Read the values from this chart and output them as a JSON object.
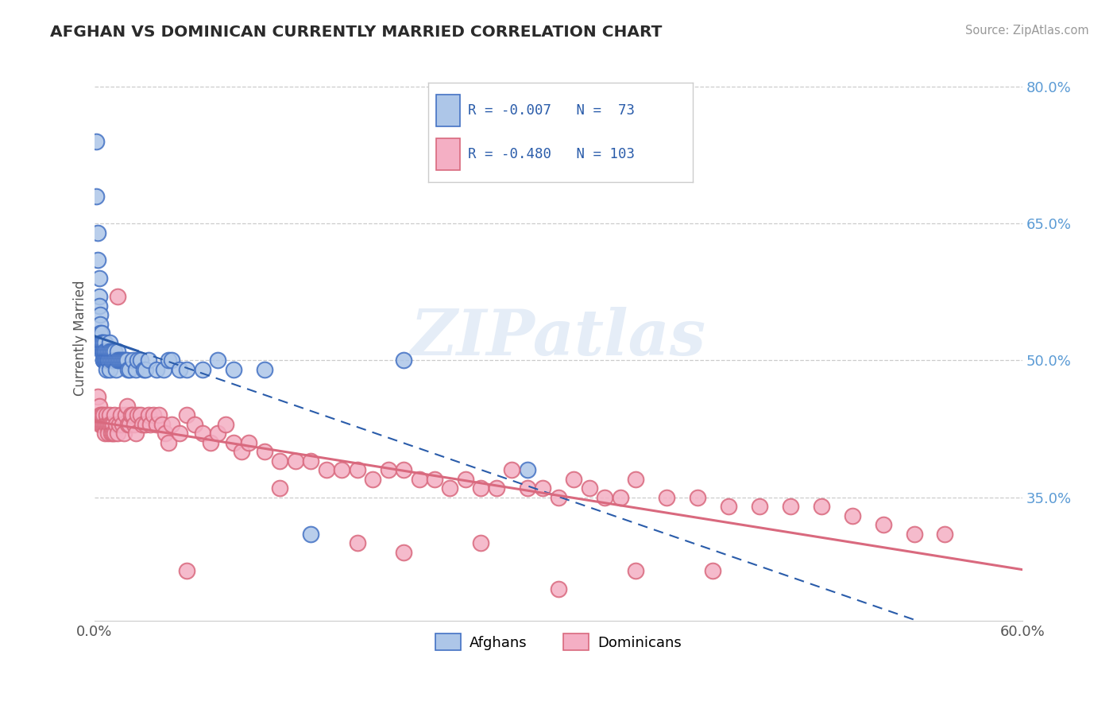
{
  "title": "AFGHAN VS DOMINICAN CURRENTLY MARRIED CORRELATION CHART",
  "source_text": "Source: ZipAtlas.com",
  "ylabel": "Currently Married",
  "x_min": 0.0,
  "x_max": 0.6,
  "y_min": 0.215,
  "y_max": 0.835,
  "y_ticks": [
    0.35,
    0.5,
    0.65,
    0.8
  ],
  "y_tick_labels": [
    "35.0%",
    "50.0%",
    "65.0%",
    "80.0%"
  ],
  "x_ticks": [
    0.0,
    0.6
  ],
  "x_tick_labels": [
    "0.0%",
    "60.0%"
  ],
  "afghan_color": "#adc6e8",
  "dominican_color": "#f4afc4",
  "afghan_edge_color": "#4472c4",
  "dominican_edge_color": "#d9697e",
  "afghan_line_color": "#2a5caa",
  "dominican_line_color": "#d9697e",
  "legend_label_1": "Afghans",
  "legend_label_2": "Dominicans",
  "R1": -0.007,
  "N1": 73,
  "R2": -0.48,
  "N2": 103,
  "watermark": "ZIPatlas",
  "afghan_x": [
    0.001,
    0.001,
    0.002,
    0.002,
    0.003,
    0.003,
    0.003,
    0.004,
    0.004,
    0.004,
    0.005,
    0.005,
    0.005,
    0.005,
    0.006,
    0.006,
    0.006,
    0.006,
    0.006,
    0.007,
    0.007,
    0.007,
    0.007,
    0.007,
    0.008,
    0.008,
    0.008,
    0.008,
    0.009,
    0.009,
    0.009,
    0.01,
    0.01,
    0.01,
    0.01,
    0.011,
    0.011,
    0.012,
    0.012,
    0.013,
    0.013,
    0.014,
    0.014,
    0.015,
    0.015,
    0.016,
    0.017,
    0.018,
    0.019,
    0.02,
    0.021,
    0.022,
    0.023,
    0.025,
    0.027,
    0.028,
    0.03,
    0.032,
    0.033,
    0.035,
    0.04,
    0.045,
    0.048,
    0.05,
    0.055,
    0.06,
    0.07,
    0.08,
    0.09,
    0.11,
    0.14,
    0.2,
    0.28
  ],
  "afghan_y": [
    0.74,
    0.68,
    0.64,
    0.61,
    0.59,
    0.57,
    0.56,
    0.55,
    0.54,
    0.53,
    0.53,
    0.52,
    0.52,
    0.51,
    0.52,
    0.51,
    0.51,
    0.5,
    0.5,
    0.52,
    0.51,
    0.51,
    0.5,
    0.5,
    0.51,
    0.5,
    0.5,
    0.49,
    0.51,
    0.5,
    0.5,
    0.52,
    0.51,
    0.5,
    0.49,
    0.51,
    0.5,
    0.51,
    0.5,
    0.51,
    0.5,
    0.5,
    0.49,
    0.51,
    0.5,
    0.5,
    0.5,
    0.5,
    0.5,
    0.5,
    0.5,
    0.49,
    0.49,
    0.5,
    0.49,
    0.5,
    0.5,
    0.49,
    0.49,
    0.5,
    0.49,
    0.49,
    0.5,
    0.5,
    0.49,
    0.49,
    0.49,
    0.5,
    0.49,
    0.49,
    0.31,
    0.5,
    0.38
  ],
  "dominican_x": [
    0.002,
    0.003,
    0.004,
    0.004,
    0.005,
    0.005,
    0.006,
    0.006,
    0.007,
    0.007,
    0.008,
    0.008,
    0.009,
    0.009,
    0.01,
    0.01,
    0.011,
    0.011,
    0.012,
    0.012,
    0.013,
    0.013,
    0.014,
    0.015,
    0.015,
    0.016,
    0.017,
    0.018,
    0.019,
    0.02,
    0.021,
    0.022,
    0.023,
    0.024,
    0.025,
    0.026,
    0.027,
    0.028,
    0.03,
    0.031,
    0.033,
    0.035,
    0.036,
    0.038,
    0.04,
    0.042,
    0.044,
    0.046,
    0.048,
    0.05,
    0.055,
    0.06,
    0.065,
    0.07,
    0.075,
    0.08,
    0.085,
    0.09,
    0.095,
    0.1,
    0.11,
    0.12,
    0.13,
    0.14,
    0.15,
    0.16,
    0.17,
    0.18,
    0.19,
    0.2,
    0.21,
    0.22,
    0.23,
    0.24,
    0.25,
    0.26,
    0.27,
    0.28,
    0.29,
    0.3,
    0.31,
    0.32,
    0.33,
    0.34,
    0.35,
    0.37,
    0.39,
    0.41,
    0.43,
    0.45,
    0.47,
    0.49,
    0.51,
    0.53,
    0.55,
    0.2,
    0.25,
    0.3,
    0.35,
    0.4,
    0.12,
    0.17,
    0.06
  ],
  "dominican_y": [
    0.46,
    0.45,
    0.44,
    0.43,
    0.43,
    0.44,
    0.43,
    0.44,
    0.43,
    0.42,
    0.44,
    0.43,
    0.43,
    0.42,
    0.44,
    0.43,
    0.43,
    0.42,
    0.43,
    0.42,
    0.44,
    0.42,
    0.43,
    0.57,
    0.42,
    0.43,
    0.44,
    0.43,
    0.42,
    0.44,
    0.45,
    0.43,
    0.43,
    0.44,
    0.44,
    0.43,
    0.42,
    0.44,
    0.44,
    0.43,
    0.43,
    0.44,
    0.43,
    0.44,
    0.43,
    0.44,
    0.43,
    0.42,
    0.41,
    0.43,
    0.42,
    0.44,
    0.43,
    0.42,
    0.41,
    0.42,
    0.43,
    0.41,
    0.4,
    0.41,
    0.4,
    0.39,
    0.39,
    0.39,
    0.38,
    0.38,
    0.38,
    0.37,
    0.38,
    0.38,
    0.37,
    0.37,
    0.36,
    0.37,
    0.36,
    0.36,
    0.38,
    0.36,
    0.36,
    0.35,
    0.37,
    0.36,
    0.35,
    0.35,
    0.37,
    0.35,
    0.35,
    0.34,
    0.34,
    0.34,
    0.34,
    0.33,
    0.32,
    0.31,
    0.31,
    0.29,
    0.3,
    0.25,
    0.27,
    0.27,
    0.36,
    0.3,
    0.27
  ]
}
